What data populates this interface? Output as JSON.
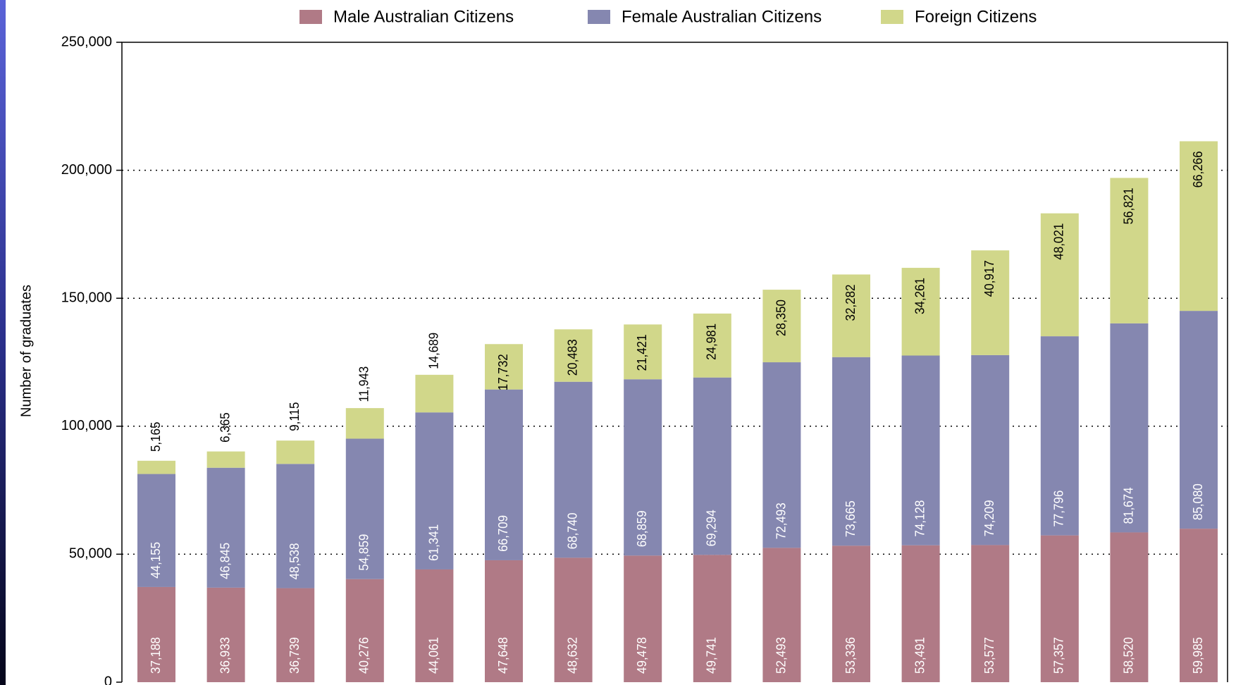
{
  "chart_data": {
    "type": "stacked-bar",
    "y_label": "Number of graduates",
    "categories": [
      null,
      null,
      null,
      null,
      null,
      null,
      null,
      null,
      null,
      null,
      null,
      null,
      null,
      null,
      null,
      null
    ],
    "series": [
      {
        "name": "Male Australian Citizens",
        "color": "#b07a86",
        "values": [
          37188,
          36933,
          36739,
          40276,
          44061,
          47648,
          48632,
          49478,
          49741,
          52493,
          53336,
          53491,
          53577,
          57357,
          58520,
          59985
        ],
        "value_labels": [
          "37,188",
          "36,933",
          "36,739",
          "40,276",
          "44,061",
          "47,648",
          "48,632",
          "49,478",
          "49,741",
          "52,493",
          "53,336",
          "53,491",
          "53,577",
          "57,357",
          "58,520",
          "59,985"
        ]
      },
      {
        "name": "Female Australian Citizens",
        "color": "#8587b0",
        "values": [
          44155,
          46845,
          48538,
          54859,
          61341,
          66709,
          68740,
          68859,
          69294,
          72493,
          73665,
          74128,
          74209,
          77796,
          81674,
          85080
        ],
        "value_labels": [
          "44,155",
          "46,845",
          "48,538",
          "54,859",
          "61,341",
          "66,709",
          "68,740",
          "68,859",
          "69,294",
          "72,493",
          "73,665",
          "74,128",
          "74,209",
          "77,796",
          "81,674",
          "85,080"
        ]
      },
      {
        "name": "Foreign Citizens",
        "color": "#d1d78a",
        "values": [
          5165,
          6365,
          9115,
          11943,
          14689,
          17732,
          20483,
          21421,
          24981,
          28350,
          32282,
          34261,
          40917,
          48021,
          56821,
          66266
        ],
        "value_labels": [
          "5,165",
          "6,365",
          "9,115",
          "11,943",
          "14,689",
          "17,732",
          "20,483",
          "21,421",
          "24,981",
          "28,350",
          "32,282",
          "34,261",
          "40,917",
          "48,021",
          "56,821",
          "66,266"
        ]
      }
    ],
    "ylim": [
      0,
      250000
    ],
    "yticks": [
      {
        "value": 0,
        "label": "0"
      },
      {
        "value": 50000,
        "label": "50,000"
      },
      {
        "value": 100000,
        "label": "100,000"
      },
      {
        "value": 150000,
        "label": "150,000"
      },
      {
        "value": 200000,
        "label": "200,000"
      },
      {
        "value": 250000,
        "label": "250,000"
      }
    ],
    "grid": true,
    "legend": "top"
  }
}
